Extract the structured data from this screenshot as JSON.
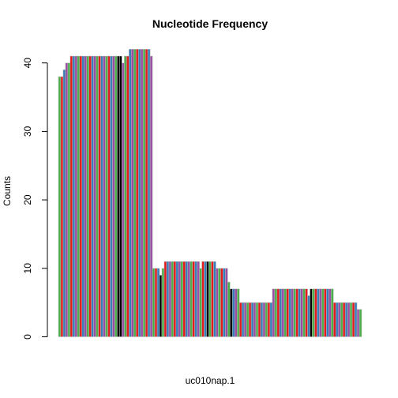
{
  "chart_data": {
    "type": "bar",
    "title": "Nucleotide Frequency",
    "xlabel": "uc010nap.1",
    "ylabel": "Counts",
    "ylim": [
      0,
      45
    ],
    "yticks": [
      0,
      10,
      20,
      30,
      40
    ],
    "grid": false,
    "legend": "none",
    "colors": {
      "red": "#E41A1C",
      "blue": "#377EB8",
      "green": "#4DAF4A",
      "purple": "#984EA3",
      "black": "#000000",
      "gray": "#BEBEBE"
    },
    "color_cycle": [
      "green",
      "red",
      "blue",
      "purple"
    ],
    "values": [
      38,
      38,
      39,
      40,
      40,
      41,
      41,
      41,
      41,
      41,
      41,
      41,
      41,
      41,
      41,
      41,
      41,
      41,
      41,
      41,
      41,
      41,
      41,
      41,
      41,
      41,
      41,
      40,
      41,
      41,
      42,
      42,
      42,
      42,
      42,
      42,
      42,
      42,
      42,
      41,
      10,
      10,
      10,
      9,
      10,
      11,
      11,
      11,
      11,
      11,
      11,
      11,
      11,
      11,
      11,
      11,
      11,
      11,
      11,
      11,
      10,
      11,
      11,
      11,
      11,
      11,
      11,
      10,
      10,
      10,
      10,
      10,
      8,
      7,
      7,
      7,
      7,
      5,
      5,
      5,
      5,
      5,
      5,
      5,
      5,
      5,
      5,
      5,
      5,
      5,
      5,
      7,
      7,
      7,
      7,
      7,
      7,
      7,
      7,
      7,
      7,
      7,
      7,
      7,
      7,
      7,
      6,
      7,
      7,
      7,
      7,
      7,
      7,
      7,
      7,
      7,
      7,
      5,
      5,
      5,
      5,
      5,
      5,
      5,
      5,
      5,
      5,
      4,
      4
    ],
    "dark_bars": [
      25,
      26,
      43,
      63,
      73,
      107
    ]
  }
}
